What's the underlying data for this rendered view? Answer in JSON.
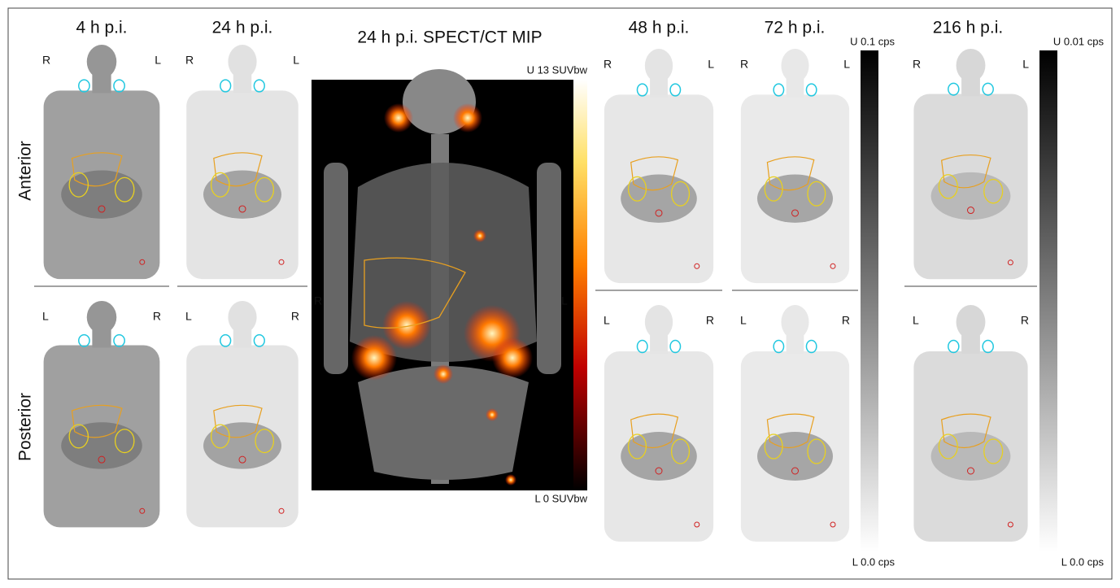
{
  "columns": [
    {
      "title": "4 h p.i.",
      "anterior": {
        "left": "R",
        "right": "L"
      },
      "posterior": {
        "left": "L",
        "right": "R"
      }
    },
    {
      "title": "24 h p.i.",
      "anterior": {
        "left": "R",
        "right": "L"
      },
      "posterior": {
        "left": "L",
        "right": "R"
      }
    },
    {
      "title": "48 h p.i.",
      "anterior": {
        "left": "R",
        "right": "L"
      },
      "posterior": {
        "left": "L",
        "right": "R"
      }
    },
    {
      "title": "72 h p.i.",
      "anterior": {
        "left": "R",
        "right": "L"
      },
      "posterior": {
        "left": "L",
        "right": "R"
      }
    },
    {
      "title": "216 h p.i.",
      "anterior": {
        "left": "R",
        "right": "L"
      },
      "posterior": {
        "left": "L",
        "right": "R"
      }
    }
  ],
  "views": [
    "Anterior",
    "Posterior"
  ],
  "spect": {
    "title": "24 h p.i. SPECT/CT MIP",
    "upper": "U 13 SUVbw",
    "lower": "L 0 SUVbw",
    "left": "R",
    "right": "L"
  },
  "scales": [
    {
      "upper": "U 0.1 cps",
      "lower": "L 0.0 cps"
    },
    {
      "upper": "U 0.01 cps",
      "lower": "L 0.0 cps"
    }
  ]
}
